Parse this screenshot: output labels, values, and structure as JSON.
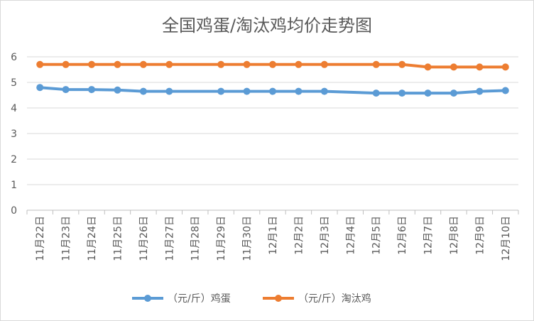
{
  "chart_data": {
    "type": "line",
    "title": "全国鸡蛋/淘汰鸡均价走势图",
    "categories": [
      "11月22日",
      "11月23日",
      "11月24日",
      "11月25日",
      "11月26日",
      "11月27日",
      "11月28日",
      "11月29日",
      "11月30日",
      "12月1日",
      "12月2日",
      "12月3日",
      "12月4日",
      "12月5日",
      "12月6日",
      "12月7日",
      "12月8日",
      "12月9日",
      "12月10日"
    ],
    "ylim": [
      0,
      6
    ],
    "yticks": [
      "0",
      "1",
      "2",
      "3",
      "4",
      "5",
      "6"
    ],
    "grid": true,
    "legend_position": "bottom",
    "series": [
      {
        "name": "（元/斤）鸡蛋",
        "color": "#5b9bd5",
        "values": [
          4.8,
          4.72,
          4.72,
          4.7,
          4.65,
          4.65,
          null,
          4.65,
          4.65,
          4.65,
          4.65,
          4.65,
          null,
          4.58,
          4.58,
          4.58,
          4.58,
          4.65,
          4.68
        ]
      },
      {
        "name": "（元/斤）淘汰鸡",
        "color": "#ed7d31",
        "values": [
          5.7,
          5.7,
          5.7,
          5.7,
          5.7,
          5.7,
          null,
          5.7,
          5.7,
          5.7,
          5.7,
          5.7,
          null,
          5.7,
          5.7,
          5.6,
          5.6,
          5.6,
          5.6
        ]
      }
    ]
  }
}
